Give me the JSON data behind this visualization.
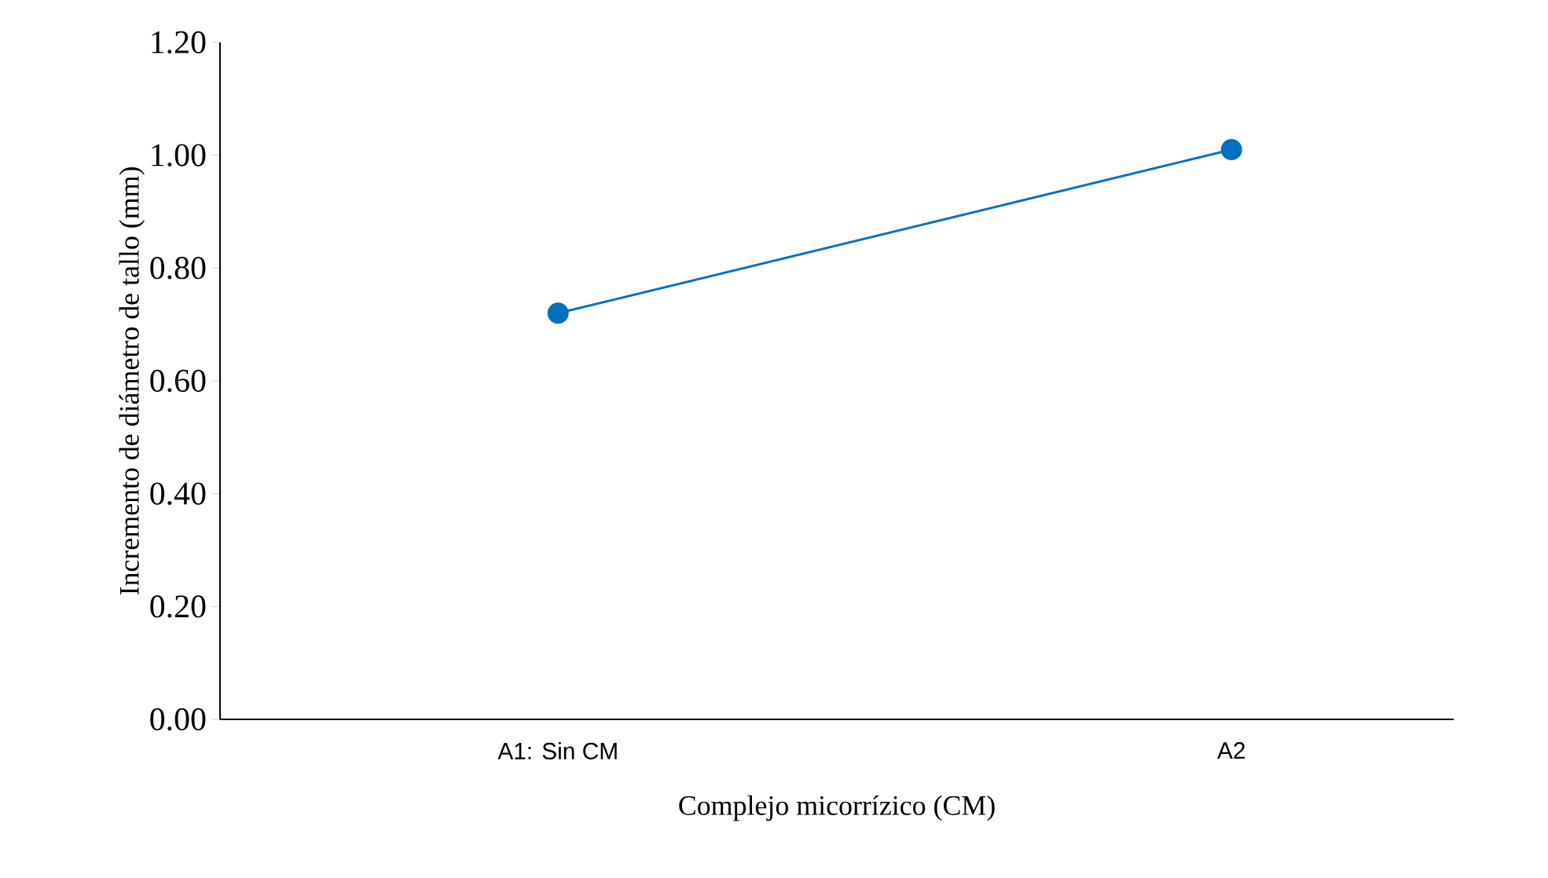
{
  "chart_data": {
    "type": "line",
    "xlabel": "Complejo micorrízico (CM)",
    "ylabel": "Incremento de diámetro de tallo (mm)",
    "categories": [
      "A1: Sin CM",
      "A2"
    ],
    "series": [
      {
        "color": "#0070c0",
        "values": [
          0.72,
          1.01
        ]
      }
    ],
    "ylim": [
      0,
      1.2
    ],
    "yticks": [
      {
        "value": 0,
        "label": "0.00"
      },
      {
        "value": 0.2,
        "label": "0.20"
      },
      {
        "value": 0.4,
        "label": "0.40"
      },
      {
        "value": 0.6,
        "label": "0.60"
      },
      {
        "value": 0.8,
        "label": "0.80"
      },
      {
        "value": 1.0,
        "label": "1.00"
      },
      {
        "value": 1.2,
        "label": "1.20"
      }
    ],
    "grid": false,
    "marker": "circle",
    "line_style": "solid"
  }
}
